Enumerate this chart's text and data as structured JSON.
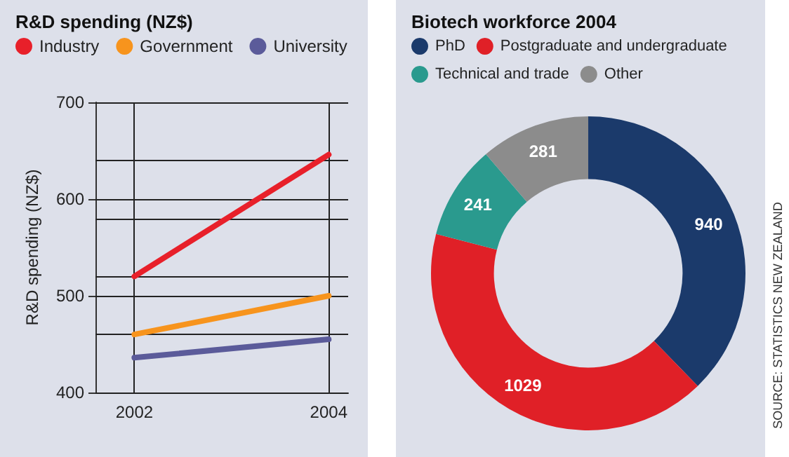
{
  "chart_data": [
    {
      "type": "line",
      "title": "R&D spending (NZ$)",
      "ylabel": "R&D spending (NZ$)",
      "x": [
        2002,
        2004
      ],
      "xlim": [
        2001.6,
        2004.2
      ],
      "xticks": [
        2002,
        2004
      ],
      "ylim": [
        400,
        700
      ],
      "yticks": [
        400,
        {
          "value": 460,
          "label": null
        },
        500,
        {
          "value": 520,
          "label": null
        },
        {
          "value": 580,
          "label": null
        },
        600,
        {
          "value": 640,
          "label": null
        },
        700
      ],
      "series": [
        {
          "name": "Industry",
          "color": "#e8202a",
          "values": [
            520,
            646
          ]
        },
        {
          "name": "Government",
          "color": "#f7941d",
          "values": [
            460,
            500
          ]
        },
        {
          "name": "University",
          "color": "#5b5b9a",
          "values": [
            436,
            455
          ]
        }
      ],
      "grid": true,
      "legend": "top left",
      "marker": "none",
      "line_style": "solid"
    },
    {
      "type": "donut",
      "title": "Biotech workforce 2004",
      "categories": [
        "PhD",
        "Postgraduate and undergraduate",
        "Technical and trade",
        "Other"
      ],
      "values": [
        940,
        1029,
        241,
        281
      ],
      "colors": [
        "#1b3a6b",
        "#e02027",
        "#2a9a8e",
        "#8c8c8c"
      ],
      "data_labels": true,
      "legend": "top left",
      "annotations": [
        "SOURCE: STATISTICS NEW ZEALAND"
      ]
    }
  ]
}
